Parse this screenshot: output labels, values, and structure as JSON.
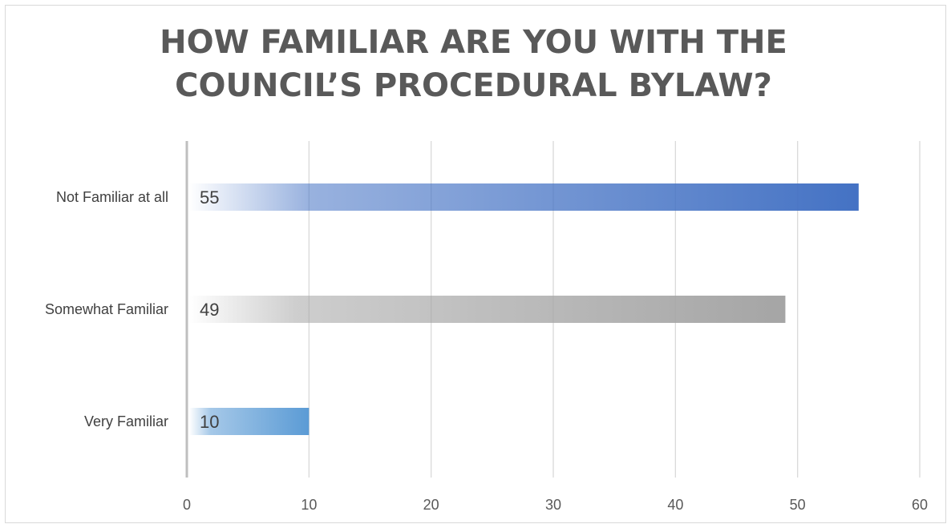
{
  "chart_data": {
    "type": "bar",
    "orientation": "horizontal",
    "title_lines": [
      "HOW FAMILIAR ARE YOU WITH THE",
      "COUNCIL’S PROCEDURAL BYLAW?"
    ],
    "categories": [
      "Not Familiar at all",
      "Somewhat Familiar",
      "Very Familiar"
    ],
    "values": [
      55,
      49,
      10
    ],
    "data_labels": [
      "55",
      "49",
      "10"
    ],
    "bar_colors": [
      "#4472c4",
      "#a5a5a5",
      "#5b9bd5"
    ],
    "xlim": [
      0,
      60
    ],
    "xticks": [
      0,
      10,
      20,
      30,
      40,
      50,
      60
    ],
    "xtick_labels": [
      "0",
      "10",
      "20",
      "30",
      "40",
      "50",
      "60"
    ],
    "grid": "vertical",
    "legend": "none"
  }
}
